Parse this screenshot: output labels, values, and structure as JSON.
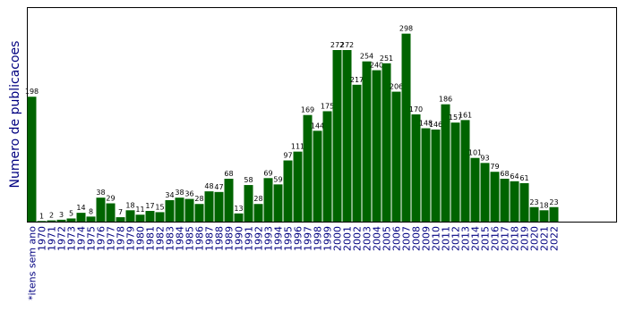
{
  "chart_data": {
    "type": "bar",
    "y_label": "Numero de publicacoes",
    "color": "#006400",
    "ylim": [
      0,
      340
    ],
    "categories": [
      "*itens sem ano",
      "1970",
      "1971",
      "1972",
      "1973",
      "1974",
      "1975",
      "1976",
      "1977",
      "1978",
      "1979",
      "1980",
      "1981",
      "1982",
      "1983",
      "1984",
      "1985",
      "1986",
      "1987",
      "1988",
      "1989",
      "1990",
      "1991",
      "1992",
      "1993",
      "1994",
      "1995",
      "1996",
      "1997",
      "1998",
      "1999",
      "2000",
      "2001",
      "2002",
      "2003",
      "2004",
      "2005",
      "2006",
      "2007",
      "2008",
      "2009",
      "2010",
      "2011",
      "2012",
      "2013",
      "2014",
      "2015",
      "2016",
      "2017",
      "2018",
      "2019",
      "2020",
      "2021",
      "2022"
    ],
    "values": [
      198,
      1,
      2,
      3,
      5,
      14,
      8,
      38,
      29,
      7,
      18,
      11,
      17,
      15,
      34,
      38,
      36,
      28,
      48,
      47,
      68,
      13,
      58,
      28,
      69,
      59,
      97,
      111,
      169,
      144,
      175,
      272,
      272,
      217,
      254,
      240,
      251,
      206,
      298,
      170,
      148,
      146,
      186,
      157,
      161,
      101,
      93,
      79,
      68,
      64,
      61,
      23,
      18,
      23
    ]
  }
}
